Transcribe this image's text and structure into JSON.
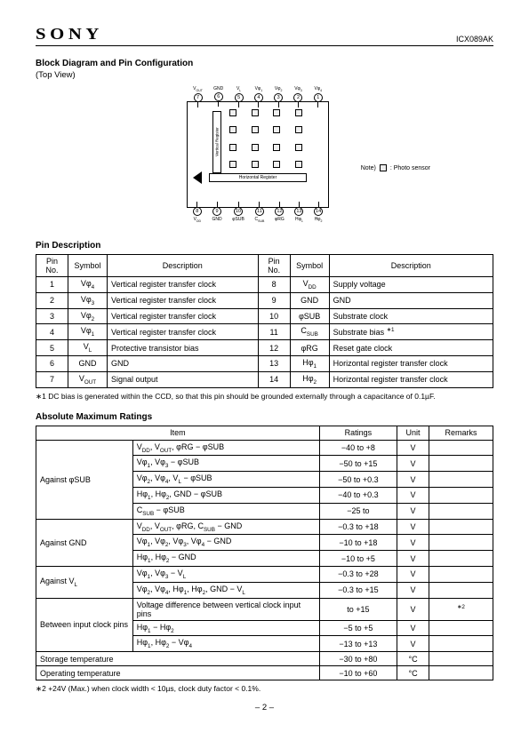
{
  "header": {
    "logo": "SONY",
    "part_number": "ICX089AK"
  },
  "block_diagram": {
    "title": "Block Diagram and Pin Configuration",
    "subtitle": "(Top View)",
    "top_pins_label_order": [
      "VOUT",
      "GND",
      "VL",
      "Vφ1",
      "Vφ2",
      "Vφ3",
      "Vφ4"
    ],
    "top_pins_numbers": [
      "7",
      "6",
      "5",
      "4",
      "3",
      "2",
      "1"
    ],
    "bot_pins_label_order": [
      "VDD",
      "GND",
      "φSUB",
      "CSUB",
      "φRG",
      "Hφ1",
      "Hφ2"
    ],
    "bot_pins_numbers": [
      "8",
      "9",
      "10",
      "11",
      "12",
      "13",
      "14"
    ],
    "hreg_label": "Horizontal Register",
    "vreg_label": "Vertical Register",
    "note_prefix": "Note)",
    "note_label": ": Photo sensor"
  },
  "pin_description": {
    "title": "Pin Description",
    "headers": [
      "Pin No.",
      "Symbol",
      "Description",
      "Pin No.",
      "Symbol",
      "Description"
    ],
    "rows": [
      [
        "1",
        "Vφ4",
        "Vertical register transfer clock",
        "8",
        "VDD",
        "Supply voltage"
      ],
      [
        "2",
        "Vφ3",
        "Vertical register transfer clock",
        "9",
        "GND",
        "GND"
      ],
      [
        "3",
        "Vφ2",
        "Vertical register transfer clock",
        "10",
        "φSUB",
        "Substrate clock"
      ],
      [
        "4",
        "Vφ1",
        "Vertical register transfer clock",
        "11",
        "CSUB",
        "Substrate bias ∗1"
      ],
      [
        "5",
        "VL",
        "Protective transistor bias",
        "12",
        "φRG",
        "Reset gate clock"
      ],
      [
        "6",
        "GND",
        "GND",
        "13",
        "Hφ1",
        "Horizontal register transfer clock"
      ],
      [
        "7",
        "VOUT",
        "Signal output",
        "14",
        "Hφ2",
        "Horizontal register transfer clock"
      ]
    ],
    "footnote": "∗1 DC bias is generated within the CCD, so that this pin should be grounded externally through a capacitance of 0.1µF."
  },
  "ratings": {
    "title": "Absolute Maximum Ratings",
    "headers": [
      "Item",
      "Ratings",
      "Unit",
      "Remarks"
    ],
    "groups": [
      {
        "label": "Against φSUB",
        "rows": [
          [
            "VDD, VOUT, φRG − φSUB",
            "−40 to +8",
            "V",
            ""
          ],
          [
            "Vφ1, Vφ3 − φSUB",
            "−50 to +15",
            "V",
            ""
          ],
          [
            "Vφ2, Vφ4, VL − φSUB",
            "−50 to +0.3",
            "V",
            ""
          ],
          [
            "Hφ1, Hφ2, GND − φSUB",
            "−40 to +0.3",
            "V",
            ""
          ],
          [
            "CSUB − φSUB",
            "−25 to",
            "V",
            ""
          ]
        ]
      },
      {
        "label": "Against GND",
        "rows": [
          [
            "VDD, VOUT, φRG, CSUB − GND",
            "−0.3 to +18",
            "V",
            ""
          ],
          [
            "Vφ1, Vφ2, Vφ3, Vφ4 − GND",
            "−10 to +18",
            "V",
            ""
          ],
          [
            "Hφ1, Hφ2 − GND",
            "−10 to +5",
            "V",
            ""
          ]
        ]
      },
      {
        "label": "Against VL",
        "rows": [
          [
            "Vφ1, Vφ3 − VL",
            "−0.3 to +28",
            "V",
            ""
          ],
          [
            "Vφ2, Vφ4, Hφ1, Hφ2, GND − VL",
            "−0.3 to +15",
            "V",
            ""
          ]
        ]
      },
      {
        "label": "Between input clock pins",
        "rows": [
          [
            "Voltage difference between vertical clock input pins",
            "to +15",
            "V",
            "∗2"
          ],
          [
            "Hφ1 − Hφ2",
            "−5 to +5",
            "V",
            ""
          ],
          [
            "Hφ1, Hφ2 − Vφ4",
            "−13 to +13",
            "V",
            ""
          ]
        ]
      }
    ],
    "simple_rows": [
      [
        "Storage temperature",
        "−30 to +80",
        "°C",
        ""
      ],
      [
        "Operating temperature",
        "−10 to +60",
        "°C",
        ""
      ]
    ],
    "footnote": "∗2 +24V (Max.) when clock width < 10µs, clock duty factor < 0.1%."
  },
  "page_number": "– 2 –",
  "colors": {
    "border": "#000000",
    "background": "#ffffff",
    "sensor_fill": "#f0f0f0"
  }
}
